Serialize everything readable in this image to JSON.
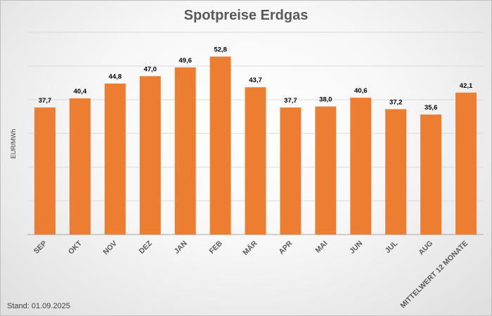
{
  "chart_data": {
    "type": "bar",
    "title": "Spotpreise Erdgas",
    "ylabel": "EUR/MWh",
    "xlabel": "",
    "categories": [
      "SEP",
      "OKT",
      "NOV",
      "DEZ",
      "JAN",
      "FEB",
      "MÄR",
      "APR",
      "MAI",
      "JUN",
      "JUL",
      "AUG",
      "MITTELWERT 12 MONATE"
    ],
    "values": [
      37.7,
      40.4,
      44.8,
      47.0,
      49.6,
      52.8,
      43.7,
      37.7,
      38.0,
      40.6,
      37.2,
      35.6,
      42.1
    ],
    "value_labels": [
      "37,7",
      "40,4",
      "44,8",
      "47,0",
      "49,6",
      "52,8",
      "43,7",
      "37,7",
      "38,0",
      "40,6",
      "37,2",
      "35,6",
      "42,1"
    ],
    "ylim": [
      0,
      60
    ],
    "grid": true,
    "legend": "none",
    "bar_color": "#ed7d31"
  },
  "footnote": "Stand: 01.09.2025"
}
